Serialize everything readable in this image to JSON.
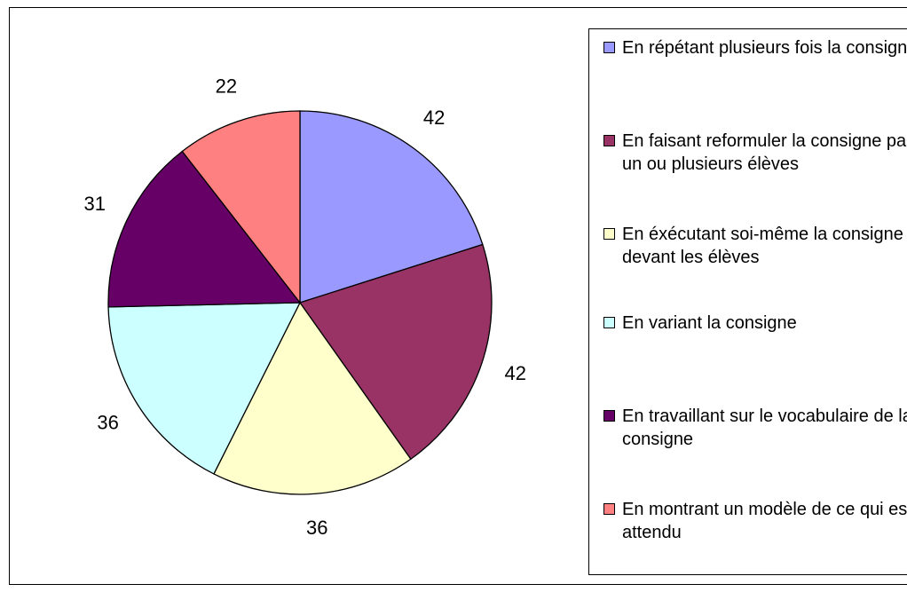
{
  "chart_data": {
    "type": "pie",
    "categories": [
      "En répétant plusieurs fois la consigne",
      "En faisant reformuler la consigne par un ou plusieurs élèves",
      "En éxécutant soi-même la consigne devant les élèves",
      "En variant la consigne",
      "En travaillant sur le vocabulaire de la consigne",
      "En montrant un modèle de ce qui est attendu"
    ],
    "values": [
      42,
      42,
      36,
      36,
      31,
      22
    ],
    "colors": [
      "#9999ff",
      "#993366",
      "#ffffcc",
      "#ccffff",
      "#660066",
      "#ff8080"
    ],
    "legend": "right"
  }
}
